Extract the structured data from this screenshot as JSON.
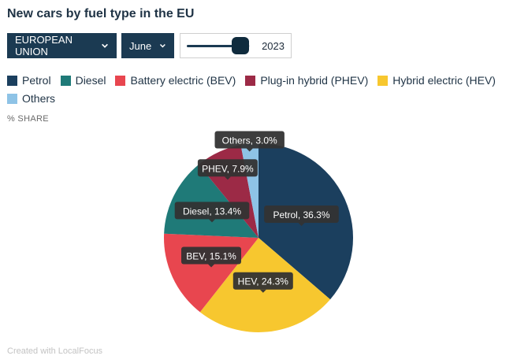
{
  "title": "New cars by fuel type in the EU",
  "controls": {
    "region": "EUROPEAN UNION",
    "month": "June",
    "year": "2023",
    "year_slider_position": 0.85
  },
  "unit_label": "% SHARE",
  "footer": "Created with LocalFocus",
  "icons": {
    "dropdown": "chevron-down-icon"
  },
  "legend": [
    {
      "label": "Petrol",
      "color": "#1b3f5e"
    },
    {
      "label": "Diesel",
      "color": "#1f7a78"
    },
    {
      "label": "Battery electric (BEV)",
      "color": "#e8464f"
    },
    {
      "label": "Plug-in hybrid (PHEV)",
      "color": "#9c2a46"
    },
    {
      "label": "Hybrid electric (HEV)",
      "color": "#f7c72f"
    },
    {
      "label": "Others",
      "color": "#8ec3e6"
    }
  ],
  "chart_data": {
    "type": "pie",
    "start_angle_deg": 0,
    "slices": [
      {
        "short": "Petrol",
        "value": 36.3,
        "display": "Petrol, 36.3%",
        "color": "#1b3f5e"
      },
      {
        "short": "HEV",
        "value": 24.3,
        "display": "HEV, 24.3%",
        "color": "#f7c72f"
      },
      {
        "short": "BEV",
        "value": 15.1,
        "display": "BEV, 15.1%",
        "color": "#e8464f"
      },
      {
        "short": "Diesel",
        "value": 13.4,
        "display": "Diesel, 13.4%",
        "color": "#1f7a78"
      },
      {
        "short": "PHEV",
        "value": 7.9,
        "display": "PHEV, 7.9%",
        "color": "#9c2a46"
      },
      {
        "short": "Others",
        "value": 3.0,
        "display": "Others, 3.0%",
        "color": "#8ec3e6"
      }
    ]
  }
}
